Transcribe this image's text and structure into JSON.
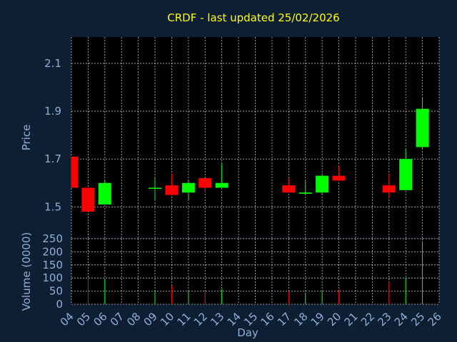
{
  "chart_data": {
    "type": "candlestick",
    "title": "CRDF - last updated 25/02/2026",
    "xlabel": "Day",
    "price_ylabel": "Price",
    "volume_ylabel": "Volume (0000)",
    "x_ticks": [
      "04",
      "05",
      "06",
      "07",
      "08",
      "09",
      "10",
      "11",
      "12",
      "13",
      "14",
      "15",
      "16",
      "17",
      "18",
      "19",
      "20",
      "21",
      "22",
      "23",
      "24",
      "25",
      "26"
    ],
    "price_ticks": [
      "1.5",
      "1.7",
      "1.9",
      "2.1"
    ],
    "volume_ticks": [
      "0",
      "50",
      "100",
      "150",
      "200",
      "250"
    ],
    "price_ylim": [
      1.37,
      2.21
    ],
    "volume_ylim": [
      0,
      250
    ],
    "grid": true,
    "colors": {
      "up": "#00ff00",
      "down": "#ff0000",
      "background": "#0f1f33",
      "plot": "#000000",
      "title": "#ffff00",
      "axis_text": "#8fb0d8"
    },
    "candles": [
      {
        "day": "04",
        "open": 1.71,
        "high": 1.71,
        "low": 1.58,
        "close": 1.58
      },
      {
        "day": "05",
        "open": 1.58,
        "high": 1.58,
        "low": 1.48,
        "close": 1.48
      },
      {
        "day": "06",
        "open": 1.51,
        "high": 1.61,
        "low": 1.51,
        "close": 1.6
      },
      {
        "day": "09",
        "open": 1.58,
        "high": 1.62,
        "low": 1.53,
        "close": 1.58
      },
      {
        "day": "10",
        "open": 1.59,
        "high": 1.64,
        "low": 1.55,
        "close": 1.55
      },
      {
        "day": "11",
        "open": 1.56,
        "high": 1.61,
        "low": 1.53,
        "close": 1.6
      },
      {
        "day": "12",
        "open": 1.62,
        "high": 1.62,
        "low": 1.56,
        "close": 1.58
      },
      {
        "day": "13",
        "open": 1.58,
        "high": 1.68,
        "low": 1.58,
        "close": 1.6
      },
      {
        "day": "17",
        "open": 1.59,
        "high": 1.62,
        "low": 1.56,
        "close": 1.56
      },
      {
        "day": "18",
        "open": 1.555,
        "high": 1.61,
        "low": 1.55,
        "close": 1.56
      },
      {
        "day": "19",
        "open": 1.56,
        "high": 1.64,
        "low": 1.55,
        "close": 1.63
      },
      {
        "day": "20",
        "open": 1.63,
        "high": 1.67,
        "low": 1.61,
        "close": 1.61
      },
      {
        "day": "23",
        "open": 1.59,
        "high": 1.64,
        "low": 1.54,
        "close": 1.56
      },
      {
        "day": "24",
        "open": 1.57,
        "high": 1.74,
        "low": 1.57,
        "close": 1.7
      },
      {
        "day": "25",
        "open": 1.75,
        "high": 1.96,
        "low": 1.74,
        "close": 1.91
      }
    ],
    "volume": [
      {
        "day": "04",
        "value": 0,
        "dir": "down"
      },
      {
        "day": "05",
        "value": 100,
        "dir": "down"
      },
      {
        "day": "06",
        "value": 95,
        "dir": "up"
      },
      {
        "day": "09",
        "value": 50,
        "dir": "up"
      },
      {
        "day": "10",
        "value": 70,
        "dir": "down"
      },
      {
        "day": "11",
        "value": 55,
        "dir": "up"
      },
      {
        "day": "12",
        "value": 50,
        "dir": "down"
      },
      {
        "day": "13",
        "value": 58,
        "dir": "up"
      },
      {
        "day": "17",
        "value": 50,
        "dir": "down"
      },
      {
        "day": "18",
        "value": 45,
        "dir": "up"
      },
      {
        "day": "19",
        "value": 50,
        "dir": "up"
      },
      {
        "day": "20",
        "value": 55,
        "dir": "down"
      },
      {
        "day": "23",
        "value": 85,
        "dir": "down"
      },
      {
        "day": "24",
        "value": 100,
        "dir": "up"
      },
      {
        "day": "25",
        "value": 240,
        "dir": "up"
      }
    ]
  }
}
